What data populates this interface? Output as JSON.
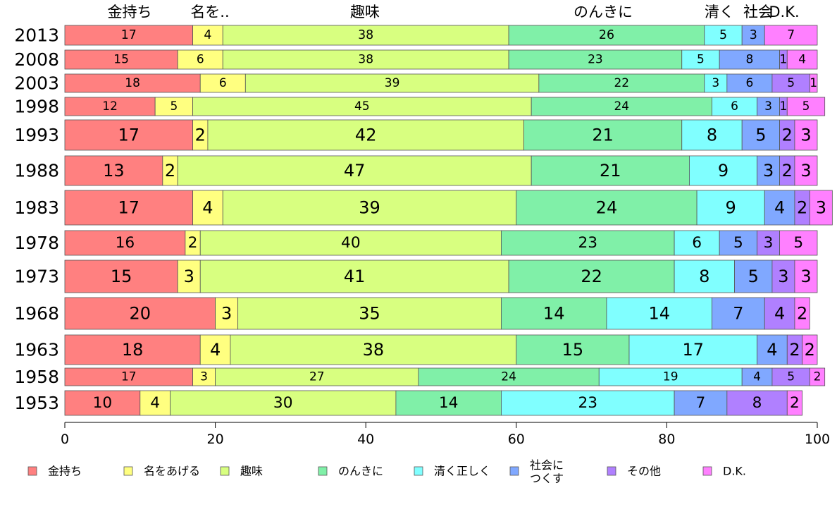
{
  "chart_data": {
    "type": "bar",
    "orientation": "horizontal",
    "stacked": true,
    "categories": [
      "2013",
      "2008",
      "2003",
      "1998",
      "1993",
      "1988",
      "1983",
      "1978",
      "1973",
      "1968",
      "1963",
      "1958",
      "1953"
    ],
    "column_headers": [
      "金持ち",
      "名を..",
      "趣味",
      "のんきに",
      "清く",
      "社会",
      "D.K."
    ],
    "series": [
      {
        "name": "金持ち",
        "color": "#ff8080",
        "values": [
          17,
          15,
          18,
          12,
          17,
          13,
          17,
          16,
          15,
          20,
          18,
          17,
          10
        ]
      },
      {
        "name": "名をあげる",
        "color": "#ffff80",
        "values": [
          4,
          6,
          6,
          5,
          2,
          2,
          4,
          2,
          3,
          3,
          4,
          3,
          4
        ]
      },
      {
        "name": "趣味",
        "color": "#d8ff80",
        "values": [
          38,
          38,
          39,
          45,
          42,
          47,
          39,
          40,
          41,
          35,
          38,
          27,
          30
        ]
      },
      {
        "name": "のんきに",
        "color": "#80f0a8",
        "values": [
          26,
          23,
          22,
          24,
          21,
          21,
          24,
          23,
          22,
          14,
          15,
          24,
          14
        ]
      },
      {
        "name": "清く正しく",
        "color": "#80ffff",
        "values": [
          5,
          5,
          3,
          6,
          8,
          9,
          9,
          6,
          8,
          14,
          17,
          19,
          23
        ]
      },
      {
        "name": "社会に\nつくす",
        "color": "#80a8ff",
        "values": [
          3,
          8,
          6,
          3,
          5,
          3,
          4,
          5,
          5,
          7,
          4,
          4,
          7
        ]
      },
      {
        "name": "その他",
        "color": "#b080ff",
        "values": [
          0,
          1,
          5,
          1,
          2,
          2,
          2,
          3,
          3,
          4,
          2,
          5,
          8
        ]
      },
      {
        "name": "D.K.",
        "color": "#ff80ff",
        "values": [
          7,
          4,
          1,
          5,
          3,
          3,
          3,
          5,
          3,
          2,
          2,
          2,
          2
        ]
      }
    ],
    "x_ticks": [
      0,
      20,
      40,
      60,
      80,
      100
    ],
    "xlim": [
      0,
      100
    ],
    "title": "",
    "xlabel": "",
    "ylabel": "",
    "legend_position": "bottom",
    "grid": false
  }
}
